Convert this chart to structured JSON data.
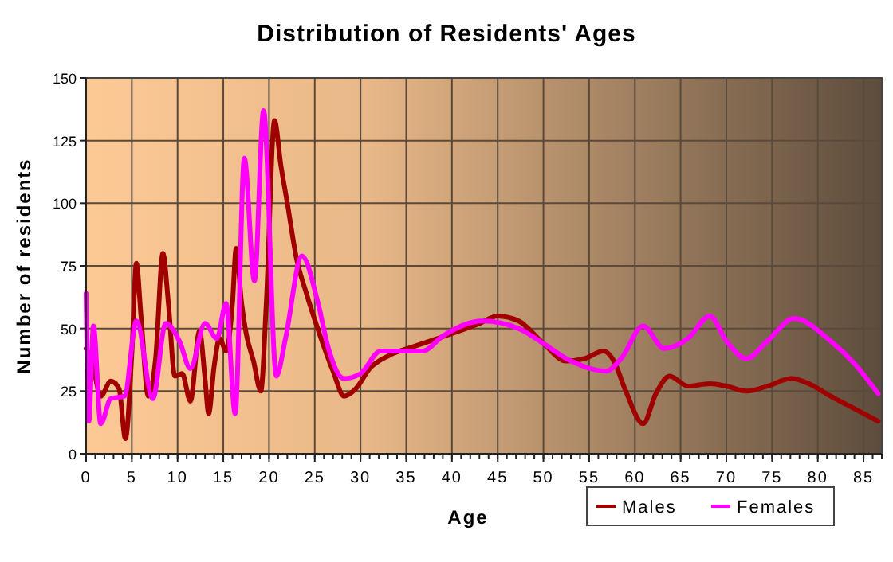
{
  "chart_data": {
    "type": "line",
    "title": "Distribution of Residents' Ages",
    "xlabel": "Age",
    "ylabel": "Number of residents",
    "xlim": [
      0,
      87
    ],
    "xticks": [
      0,
      5,
      10,
      15,
      20,
      25,
      30,
      35,
      40,
      45,
      50,
      55,
      60,
      65,
      70,
      75,
      80,
      85
    ],
    "ylim": [
      0,
      150
    ],
    "yticks": [
      0,
      25,
      50,
      75,
      100,
      125,
      150
    ],
    "grid": true,
    "legend": "bottom right",
    "marker": "none",
    "line_style": "solid",
    "series": [
      {
        "name": "Males",
        "color": "#a00000",
        "x": [
          0,
          0.7,
          1.6,
          2.7,
          3.6,
          4.3,
          5,
          5.5,
          6,
          6.8,
          7.6,
          8.4,
          9,
          9.7,
          10.5,
          11.4,
          12.4,
          13,
          13.4,
          14,
          14.6,
          15.3,
          16,
          16.4,
          17,
          17.5,
          18.3,
          19.1,
          19.7,
          20.6,
          21.3,
          22,
          23,
          24,
          25.5,
          27,
          28.2,
          29.5,
          31,
          33,
          36,
          40,
          43,
          45,
          47.3,
          50,
          52.5,
          54.5,
          56.6,
          57.7,
          59,
          60.9,
          62.3,
          63.8,
          65.8,
          68.2,
          70,
          72.2,
          74.5,
          77.1,
          79,
          81.4,
          84,
          86.6
        ],
        "values": [
          42,
          36,
          23,
          29,
          26,
          6,
          40,
          76,
          55,
          23,
          38,
          80,
          60,
          31,
          32,
          21,
          49,
          30,
          16,
          35,
          46,
          41,
          60,
          82,
          60,
          48,
          37,
          25,
          60,
          133,
          115,
          100,
          78,
          65,
          48,
          33,
          23,
          26,
          34,
          39,
          43,
          48,
          52,
          55,
          53,
          44,
          37,
          38,
          41,
          37,
          25,
          12,
          24,
          31,
          27,
          28,
          27,
          25,
          27,
          30,
          28,
          23,
          18,
          13
        ]
      },
      {
        "name": "Females",
        "color": "#ff00ff",
        "x": [
          0,
          0.3,
          0.8,
          1.6,
          2.7,
          4.2,
          5.5,
          7.3,
          8.7,
          10.2,
          11.4,
          13,
          14.3,
          15.3,
          16.3,
          17.3,
          18.4,
          19.4,
          20.8,
          21.8,
          23.6,
          25.3,
          26.5,
          28.2,
          30,
          32.2,
          36.8,
          39,
          43.3,
          47.3,
          50,
          52.5,
          56.9,
          58.5,
          60.9,
          63.2,
          65.8,
          68.2,
          70,
          72.2,
          74.5,
          77.4,
          81.4,
          84,
          86.6
        ],
        "values": [
          64,
          13,
          51,
          12,
          22,
          23,
          53,
          22,
          52,
          45,
          34,
          52,
          46,
          60,
          16,
          118,
          69,
          137,
          31,
          46,
          79,
          61,
          42,
          30,
          32,
          41,
          41,
          47,
          53,
          50,
          44,
          38,
          33,
          38,
          51,
          42,
          46,
          55,
          45,
          38,
          45,
          54,
          45,
          36,
          24
        ]
      }
    ]
  }
}
